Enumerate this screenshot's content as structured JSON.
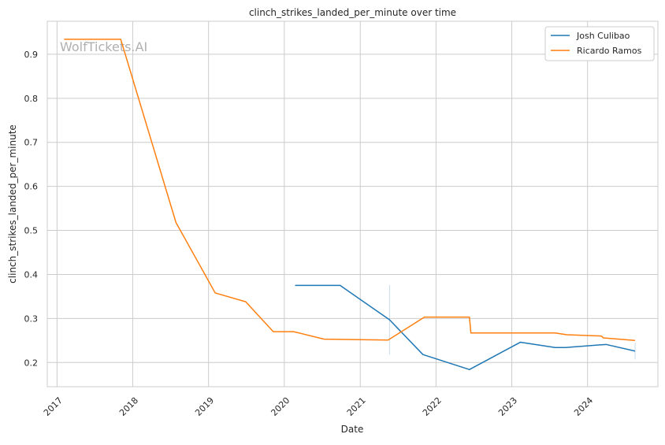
{
  "chart_data": {
    "type": "line",
    "title": "clinch_strikes_landed_per_minute over time",
    "xlabel": "Date",
    "ylabel": "clinch_strikes_landed_per_minute",
    "watermark": "WolfTickets.AI",
    "xlim": [
      "2016-11-15",
      "2024-12-05"
    ],
    "ylim": [
      0.145,
      0.975
    ],
    "x_ticks": [
      "2017",
      "2018",
      "2019",
      "2020",
      "2021",
      "2022",
      "2023",
      "2024"
    ],
    "y_ticks": [
      0.2,
      0.3,
      0.4,
      0.5,
      0.6,
      0.7,
      0.8,
      0.9
    ],
    "grid": true,
    "legend_position": "top-right",
    "series": [
      {
        "name": "Josh Culibao",
        "color": "#1f77b4",
        "points": [
          [
            "2020-02-22",
            0.375
          ],
          [
            "2020-09-26",
            0.375
          ],
          [
            "2021-05-22",
            0.297
          ],
          [
            "2021-10-30",
            0.218
          ],
          [
            "2022-06-11",
            0.184
          ],
          [
            "2023-02-11",
            0.246
          ],
          [
            "2023-07-29",
            0.234
          ],
          [
            "2023-09-16",
            0.234
          ],
          [
            "2024-03-30",
            0.241
          ],
          [
            "2024-08-17",
            0.226
          ]
        ],
        "error_bars": [
          [
            "2021-05-22",
            0.218,
            0.376
          ],
          [
            "2024-08-17",
            0.207,
            0.245
          ]
        ]
      },
      {
        "name": "Ricardo Ramos",
        "color": "#ff7f0e",
        "points": [
          [
            "2017-02-04",
            0.934
          ],
          [
            "2017-11-04",
            0.934
          ],
          [
            "2018-07-28",
            0.518
          ],
          [
            "2019-02-02",
            0.358
          ],
          [
            "2019-06-29",
            0.338
          ],
          [
            "2019-11-09",
            0.27
          ],
          [
            "2020-02-15",
            0.27
          ],
          [
            "2020-07-11",
            0.253
          ],
          [
            "2021-05-15",
            0.251
          ],
          [
            "2021-11-06",
            0.303
          ],
          [
            "2022-06-11",
            0.303
          ],
          [
            "2022-06-18",
            0.267
          ],
          [
            "2023-07-29",
            0.267
          ],
          [
            "2023-09-23",
            0.263
          ],
          [
            "2024-03-09",
            0.26
          ],
          [
            "2024-03-16",
            0.256
          ],
          [
            "2024-08-17",
            0.25
          ]
        ]
      }
    ]
  }
}
